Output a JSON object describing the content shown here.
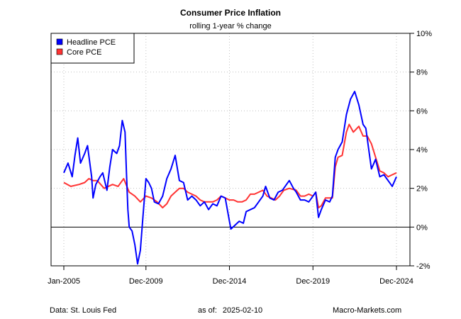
{
  "chart_data": {
    "type": "line",
    "title": "Consumer Price Inflation",
    "subtitle": "rolling 1-year % change",
    "xlabel": "",
    "ylabel": "",
    "x_range": [
      "2005-01",
      "2024-12"
    ],
    "ylim": [
      -2,
      10
    ],
    "y_ticks": [
      -2,
      0,
      2,
      4,
      6,
      8,
      10
    ],
    "y_tick_labels": [
      "-2%",
      "0%",
      "2%",
      "4%",
      "6%",
      "8%",
      "10%"
    ],
    "y_axis_position": "right",
    "x_ticks": [
      "2005-01",
      "2009-12",
      "2014-12",
      "2019-12",
      "2024-12"
    ],
    "x_tick_labels": [
      "Jan-2005",
      "Dec-2009",
      "Dec-2014",
      "Dec-2019",
      "Dec-2024"
    ],
    "grid": true,
    "zero_line": true,
    "legend_position": "top-left",
    "series": [
      {
        "name": "Headline PCE",
        "color": "#0000ff",
        "points": [
          [
            "2005-01",
            2.8
          ],
          [
            "2005-04",
            3.3
          ],
          [
            "2005-07",
            2.6
          ],
          [
            "2005-09",
            3.7
          ],
          [
            "2005-11",
            4.6
          ],
          [
            "2006-01",
            3.3
          ],
          [
            "2006-04",
            3.8
          ],
          [
            "2006-06",
            4.2
          ],
          [
            "2006-09",
            2.6
          ],
          [
            "2006-10",
            1.5
          ],
          [
            "2006-12",
            2.2
          ],
          [
            "2007-03",
            2.6
          ],
          [
            "2007-05",
            2.8
          ],
          [
            "2007-08",
            1.9
          ],
          [
            "2007-10",
            3.1
          ],
          [
            "2007-12",
            4.0
          ],
          [
            "2008-03",
            3.8
          ],
          [
            "2008-05",
            4.2
          ],
          [
            "2008-07",
            5.5
          ],
          [
            "2008-09",
            4.9
          ],
          [
            "2008-10",
            2.8
          ],
          [
            "2008-11",
            0.9
          ],
          [
            "2008-12",
            0.0
          ],
          [
            "2009-02",
            -0.2
          ],
          [
            "2009-04",
            -0.9
          ],
          [
            "2009-06",
            -1.9
          ],
          [
            "2009-08",
            -1.2
          ],
          [
            "2009-10",
            0.7
          ],
          [
            "2009-12",
            2.5
          ],
          [
            "2010-02",
            2.3
          ],
          [
            "2010-04",
            2.0
          ],
          [
            "2010-06",
            1.3
          ],
          [
            "2010-09",
            1.2
          ],
          [
            "2010-12",
            1.6
          ],
          [
            "2011-03",
            2.5
          ],
          [
            "2011-06",
            3.0
          ],
          [
            "2011-09",
            3.7
          ],
          [
            "2011-12",
            2.4
          ],
          [
            "2012-03",
            2.3
          ],
          [
            "2012-06",
            1.4
          ],
          [
            "2012-09",
            1.6
          ],
          [
            "2012-12",
            1.4
          ],
          [
            "2013-03",
            1.1
          ],
          [
            "2013-06",
            1.3
          ],
          [
            "2013-09",
            0.9
          ],
          [
            "2013-12",
            1.2
          ],
          [
            "2014-03",
            1.1
          ],
          [
            "2014-06",
            1.6
          ],
          [
            "2014-09",
            1.5
          ],
          [
            "2014-12",
            0.3
          ],
          [
            "2015-01",
            -0.1
          ],
          [
            "2015-04",
            0.1
          ],
          [
            "2015-07",
            0.3
          ],
          [
            "2015-10",
            0.2
          ],
          [
            "2015-12",
            0.8
          ],
          [
            "2016-03",
            0.9
          ],
          [
            "2016-06",
            1.0
          ],
          [
            "2016-09",
            1.3
          ],
          [
            "2016-12",
            1.6
          ],
          [
            "2017-02",
            2.1
          ],
          [
            "2017-05",
            1.5
          ],
          [
            "2017-08",
            1.4
          ],
          [
            "2017-11",
            1.8
          ],
          [
            "2018-02",
            1.9
          ],
          [
            "2018-04",
            2.1
          ],
          [
            "2018-07",
            2.4
          ],
          [
            "2018-10",
            2.0
          ],
          [
            "2018-12",
            1.8
          ],
          [
            "2019-03",
            1.4
          ],
          [
            "2019-06",
            1.4
          ],
          [
            "2019-09",
            1.3
          ],
          [
            "2019-12",
            1.6
          ],
          [
            "2020-02",
            1.8
          ],
          [
            "2020-04",
            0.5
          ],
          [
            "2020-06",
            0.9
          ],
          [
            "2020-09",
            1.4
          ],
          [
            "2020-12",
            1.3
          ],
          [
            "2021-02",
            1.6
          ],
          [
            "2021-04",
            3.6
          ],
          [
            "2021-06",
            4.0
          ],
          [
            "2021-09",
            4.4
          ],
          [
            "2021-12",
            5.8
          ],
          [
            "2022-03",
            6.6
          ],
          [
            "2022-06",
            7.0
          ],
          [
            "2022-09",
            6.3
          ],
          [
            "2022-12",
            5.3
          ],
          [
            "2023-02",
            5.1
          ],
          [
            "2023-06",
            3.0
          ],
          [
            "2023-09",
            3.5
          ],
          [
            "2023-12",
            2.6
          ],
          [
            "2024-03",
            2.7
          ],
          [
            "2024-06",
            2.4
          ],
          [
            "2024-09",
            2.1
          ],
          [
            "2024-12",
            2.6
          ]
        ]
      },
      {
        "name": "Core PCE",
        "color": "#ff3333",
        "points": [
          [
            "2005-01",
            2.3
          ],
          [
            "2005-06",
            2.1
          ],
          [
            "2005-12",
            2.2
          ],
          [
            "2006-04",
            2.3
          ],
          [
            "2006-07",
            2.5
          ],
          [
            "2006-10",
            2.4
          ],
          [
            "2007-01",
            2.4
          ],
          [
            "2007-06",
            2.0
          ],
          [
            "2007-12",
            2.2
          ],
          [
            "2008-04",
            2.1
          ],
          [
            "2008-08",
            2.5
          ],
          [
            "2008-12",
            1.8
          ],
          [
            "2009-04",
            1.6
          ],
          [
            "2009-08",
            1.3
          ],
          [
            "2009-12",
            1.6
          ],
          [
            "2010-04",
            1.5
          ],
          [
            "2010-08",
            1.3
          ],
          [
            "2010-12",
            1.0
          ],
          [
            "2011-03",
            1.2
          ],
          [
            "2011-06",
            1.6
          ],
          [
            "2011-09",
            1.8
          ],
          [
            "2011-12",
            2.0
          ],
          [
            "2012-03",
            2.0
          ],
          [
            "2012-06",
            1.8
          ],
          [
            "2012-09",
            1.7
          ],
          [
            "2012-12",
            1.6
          ],
          [
            "2013-03",
            1.4
          ],
          [
            "2013-06",
            1.3
          ],
          [
            "2013-09",
            1.3
          ],
          [
            "2013-12",
            1.3
          ],
          [
            "2014-03",
            1.4
          ],
          [
            "2014-06",
            1.6
          ],
          [
            "2014-09",
            1.5
          ],
          [
            "2014-12",
            1.4
          ],
          [
            "2015-03",
            1.4
          ],
          [
            "2015-06",
            1.3
          ],
          [
            "2015-09",
            1.3
          ],
          [
            "2015-12",
            1.4
          ],
          [
            "2016-03",
            1.7
          ],
          [
            "2016-06",
            1.7
          ],
          [
            "2016-09",
            1.8
          ],
          [
            "2016-12",
            1.9
          ],
          [
            "2017-03",
            1.6
          ],
          [
            "2017-06",
            1.5
          ],
          [
            "2017-09",
            1.4
          ],
          [
            "2017-12",
            1.6
          ],
          [
            "2018-03",
            1.9
          ],
          [
            "2018-07",
            2.0
          ],
          [
            "2018-12",
            1.9
          ],
          [
            "2019-03",
            1.6
          ],
          [
            "2019-06",
            1.6
          ],
          [
            "2019-09",
            1.7
          ],
          [
            "2019-12",
            1.6
          ],
          [
            "2020-02",
            1.8
          ],
          [
            "2020-04",
            1.0
          ],
          [
            "2020-06",
            1.1
          ],
          [
            "2020-09",
            1.5
          ],
          [
            "2020-12",
            1.5
          ],
          [
            "2021-02",
            1.5
          ],
          [
            "2021-04",
            3.1
          ],
          [
            "2021-06",
            3.6
          ],
          [
            "2021-09",
            3.7
          ],
          [
            "2021-12",
            4.9
          ],
          [
            "2022-02",
            5.3
          ],
          [
            "2022-05",
            4.9
          ],
          [
            "2022-09",
            5.2
          ],
          [
            "2022-12",
            4.7
          ],
          [
            "2023-03",
            4.7
          ],
          [
            "2023-06",
            4.3
          ],
          [
            "2023-09",
            3.6
          ],
          [
            "2023-12",
            2.9
          ],
          [
            "2024-03",
            2.8
          ],
          [
            "2024-06",
            2.6
          ],
          [
            "2024-09",
            2.7
          ],
          [
            "2024-12",
            2.8
          ]
        ]
      }
    ]
  },
  "footer": {
    "source": "Data: St. Louis Fed",
    "as_of_label": "as of:",
    "as_of_date": "2025-02-10",
    "site": "Macro-Markets.com"
  }
}
